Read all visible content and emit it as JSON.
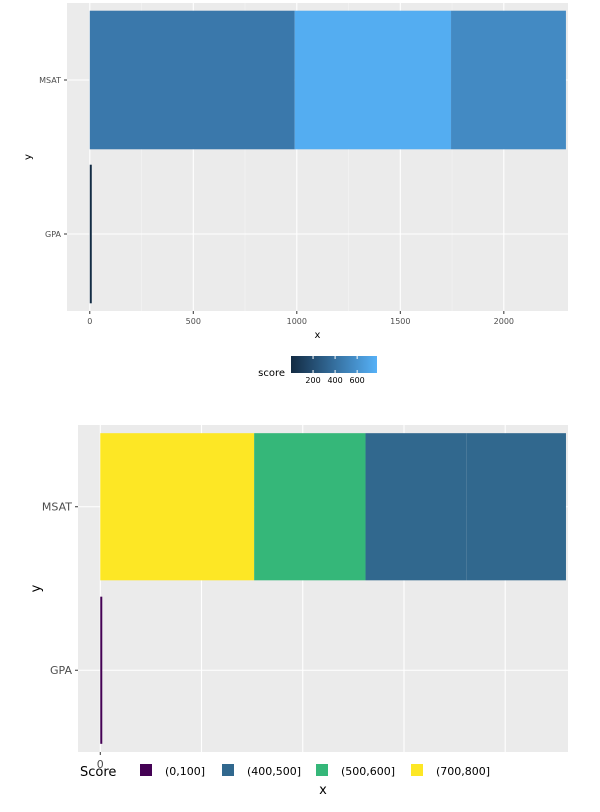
{
  "chart_data": [
    {
      "type": "bar",
      "orientation": "horizontal",
      "stacked": true,
      "categories": [
        "MSAT",
        "GPA"
      ],
      "xlabel": "x",
      "ylabel": "y",
      "xlim": [
        -110,
        2310
      ],
      "xticks": [
        {
          "value": 0,
          "label": "0"
        },
        {
          "value": 500,
          "label": "500"
        },
        {
          "value": 1000,
          "label": "1000"
        },
        {
          "value": 1500,
          "label": "1500"
        },
        {
          "value": 2000,
          "label": "2000"
        }
      ],
      "legend": {
        "title": "score",
        "type": "colorbar",
        "position": "bottom",
        "low_color": "#132b43",
        "high_color": "#56b1f7",
        "range": [
          0,
          780
        ],
        "tick_values": [
          200,
          400,
          600
        ],
        "tick_labels": [
          "200",
          "400",
          "600"
        ]
      },
      "segments": {
        "MSAT": [
          {
            "start": 0,
            "end": 990,
            "score": 450
          },
          {
            "start": 990,
            "end": 1745,
            "score": 755
          },
          {
            "start": 1745,
            "end": 2300,
            "score": 555
          }
        ],
        "GPA": [
          {
            "start": 0,
            "end": 5,
            "score": 3
          }
        ]
      },
      "grid": true
    },
    {
      "type": "bar",
      "orientation": "horizontal",
      "stacked": true,
      "categories": [
        "MSAT",
        "GPA"
      ],
      "xlabel": "x",
      "ylabel": "y",
      "xlim": [
        -110,
        2310
      ],
      "xticks": [
        {
          "value": 0,
          "label": "0"
        }
      ],
      "legend": {
        "title": "Score",
        "type": "discrete",
        "position": "bottom",
        "items": [
          {
            "label": "(0,100]",
            "color": "#440154"
          },
          {
            "label": "(400,500]",
            "color": "#31688e"
          },
          {
            "label": "(500,600]",
            "color": "#35b779"
          },
          {
            "label": "(700,800]",
            "color": "#fde725"
          }
        ]
      },
      "segments": {
        "MSAT": [
          {
            "start": 0,
            "end": 760,
            "bin": "(700,800]",
            "color": "#fde725"
          },
          {
            "start": 760,
            "end": 1310,
            "bin": "(500,600]",
            "color": "#35b779"
          },
          {
            "start": 1310,
            "end": 1810,
            "bin": "(400,500]",
            "color": "#31688e"
          },
          {
            "start": 1810,
            "end": 2300,
            "bin": "(400,500]",
            "color": "#31688e"
          }
        ],
        "GPA": [
          {
            "start": 0,
            "end": 5,
            "bin": "(0,100]",
            "color": "#440154"
          }
        ]
      },
      "grid": true
    }
  ]
}
